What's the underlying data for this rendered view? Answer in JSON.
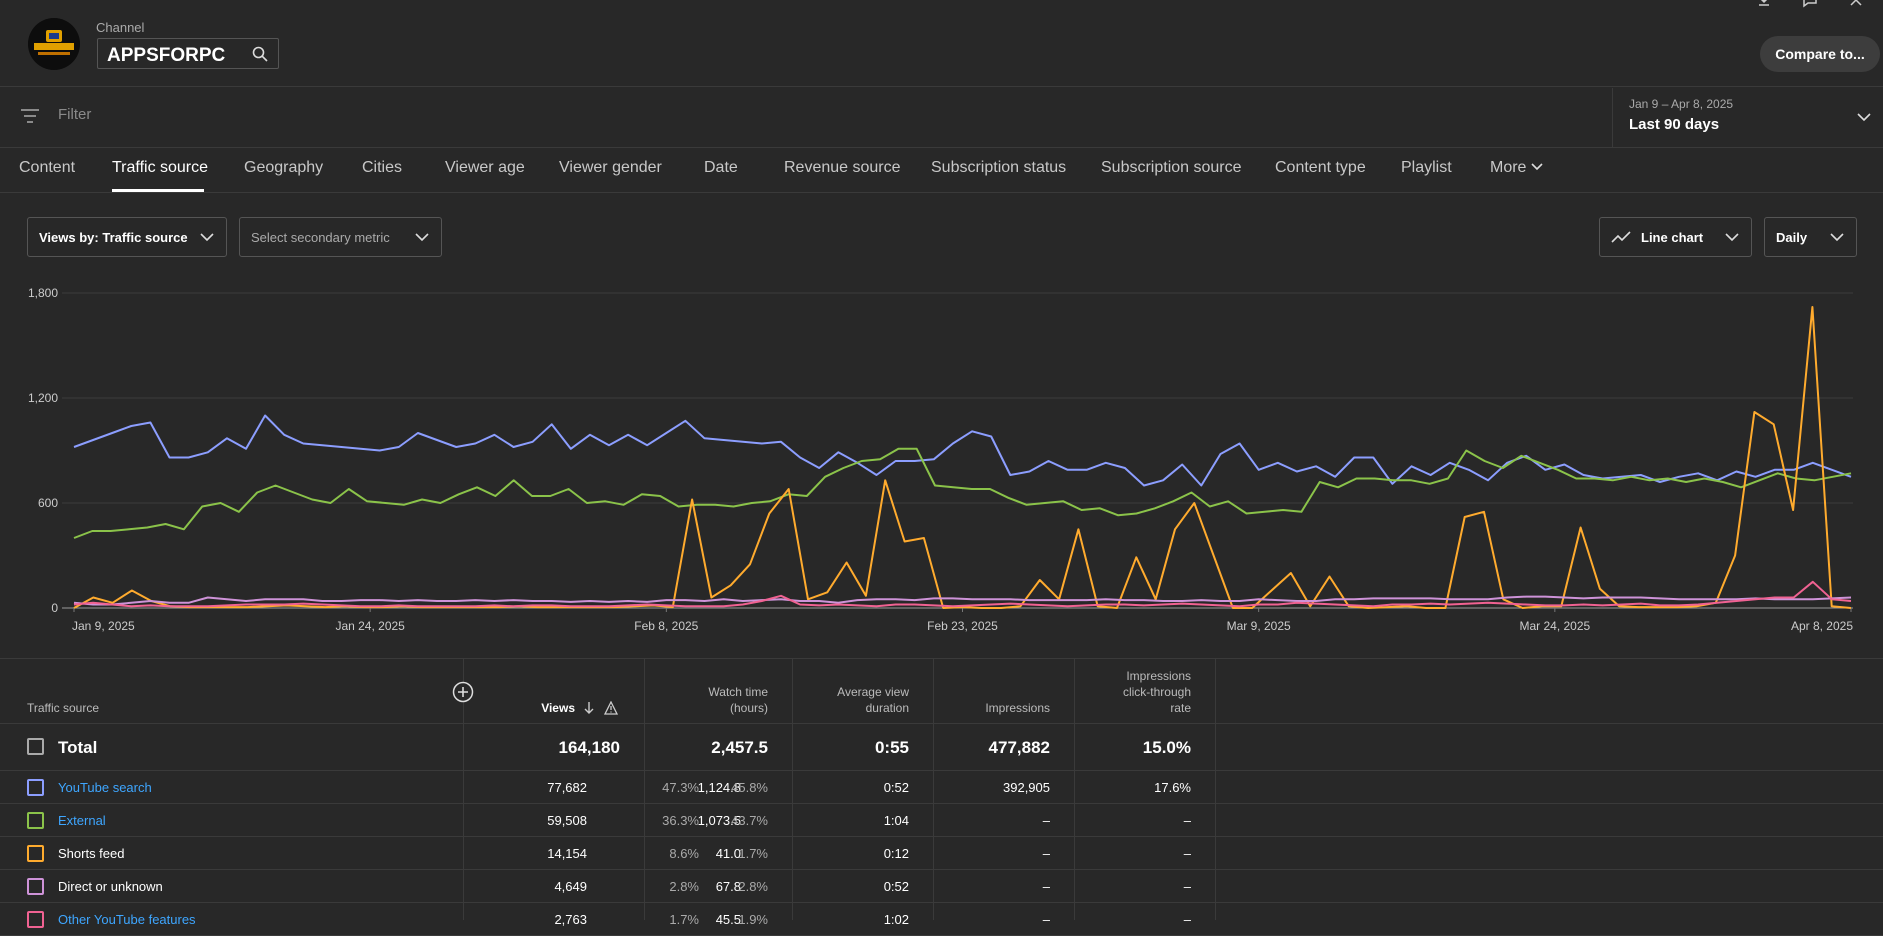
{
  "header": {
    "channel_label": "Channel",
    "channel_name": "APPSFORPC",
    "compare_label": "Compare to..."
  },
  "filter": {
    "placeholder": "Filter"
  },
  "date_range": {
    "range": "Jan 9 – Apr 8, 2025",
    "label": "Last 90 days"
  },
  "tabs": [
    "Content",
    "Traffic source",
    "Geography",
    "Cities",
    "Viewer age",
    "Viewer gender",
    "Date",
    "Revenue source",
    "Subscription status",
    "Subscription source",
    "Content type",
    "Playlist",
    "More"
  ],
  "active_tab": "Traffic source",
  "controls": {
    "primary_metric": "Views by: Traffic source",
    "secondary_metric": "Select secondary metric",
    "chart_type": "Line chart",
    "granularity": "Daily"
  },
  "chart_data": {
    "type": "line",
    "ylim": [
      0,
      1800
    ],
    "yticks": [
      "0",
      "600",
      "1,200",
      "1,800"
    ],
    "xtick_labels": [
      "Jan 9, 2025",
      "Jan 24, 2025",
      "Feb 8, 2025",
      "Feb 23, 2025",
      "Mar 9, 2025",
      "Mar 24, 2025",
      "Apr 8, 2025"
    ],
    "x_start": "2025-01-09",
    "x_end": "2025-04-08",
    "series": [
      {
        "color": "#8c9eff",
        "values": [
          920,
          960,
          1000,
          1040,
          1060,
          860,
          860,
          890,
          970,
          910,
          1100,
          990,
          940,
          930,
          920,
          910,
          900,
          920,
          1000,
          960,
          920,
          940,
          990,
          920,
          950,
          1050,
          910,
          990,
          930,
          990,
          930,
          1000,
          1070,
          970,
          960,
          950,
          940,
          950,
          860,
          800,
          890,
          830,
          760,
          840,
          840,
          850,
          940,
          1010,
          980,
          760,
          780,
          840,
          790,
          790,
          830,
          800,
          700,
          730,
          820,
          700,
          880,
          940,
          790,
          830,
          780,
          810,
          750,
          860,
          860,
          710,
          810,
          760,
          830,
          790,
          730,
          830,
          870,
          790,
          820,
          760,
          740,
          750,
          760,
          720,
          750,
          770,
          730,
          780,
          750,
          790,
          790,
          830,
          790,
          750
        ]
      },
      {
        "color": "#8bc34a",
        "values": [
          400,
          440,
          440,
          450,
          460,
          480,
          450,
          580,
          600,
          550,
          660,
          700,
          660,
          620,
          600,
          680,
          610,
          600,
          590,
          620,
          600,
          650,
          690,
          640,
          730,
          640,
          640,
          680,
          600,
          610,
          590,
          650,
          640,
          580,
          590,
          590,
          580,
          600,
          610,
          650,
          640,
          750,
          800,
          840,
          850,
          910,
          910,
          700,
          690,
          680,
          680,
          630,
          590,
          600,
          610,
          560,
          570,
          530,
          540,
          570,
          610,
          660,
          580,
          610,
          540,
          550,
          560,
          550,
          720,
          690,
          740,
          740,
          730,
          730,
          710,
          740,
          900,
          840,
          800,
          870,
          830,
          790,
          740,
          740,
          730,
          750,
          730,
          740,
          720,
          740,
          720,
          690,
          730,
          770,
          740,
          730,
          750,
          770
        ]
      },
      {
        "color": "#ffab2e",
        "values": [
          0,
          60,
          30,
          100,
          40,
          10,
          5,
          5,
          5,
          5,
          10,
          15,
          10,
          5,
          10,
          5,
          5,
          10,
          5,
          5,
          5,
          5,
          5,
          10,
          5,
          5,
          5,
          5,
          5,
          10,
          15,
          5,
          620,
          60,
          130,
          250,
          540,
          680,
          50,
          90,
          260,
          70,
          730,
          380,
          400,
          0,
          5,
          0,
          0,
          10,
          160,
          50,
          450,
          10,
          0,
          290,
          50,
          450,
          600,
          300,
          0,
          0,
          100,
          200,
          10,
          180,
          10,
          0,
          5,
          10,
          0,
          0,
          520,
          550,
          50,
          0,
          10,
          10,
          460,
          110,
          10,
          5,
          5,
          5,
          10,
          30,
          300,
          1120,
          1050,
          560,
          1720,
          10,
          0
        ]
      },
      {
        "color": "#ce93d8",
        "values": [
          30,
          20,
          20,
          30,
          40,
          30,
          30,
          60,
          50,
          40,
          50,
          50,
          50,
          40,
          40,
          45,
          45,
          40,
          45,
          40,
          40,
          45,
          40,
          45,
          40,
          40,
          35,
          40,
          35,
          40,
          35,
          45,
          45,
          40,
          50,
          40,
          45,
          50,
          40,
          40,
          30,
          45,
          50,
          50,
          45,
          55,
          55,
          50,
          50,
          50,
          45,
          45,
          45,
          45,
          50,
          45,
          45,
          40,
          40,
          45,
          40,
          40,
          50,
          45,
          40,
          40,
          50,
          50,
          55,
          55,
          55,
          55,
          50,
          50,
          50,
          60,
          65,
          65,
          60,
          55,
          60,
          60,
          60,
          55,
          50,
          50,
          50,
          50,
          55,
          50,
          50,
          50,
          55,
          60
        ]
      },
      {
        "color": "#f06292",
        "values": [
          20,
          30,
          20,
          10,
          15,
          10,
          10,
          10,
          15,
          20,
          20,
          20,
          25,
          20,
          15,
          10,
          10,
          15,
          10,
          10,
          10,
          10,
          15,
          10,
          15,
          15,
          10,
          10,
          10,
          15,
          20,
          15,
          10,
          10,
          10,
          20,
          40,
          70,
          20,
          15,
          20,
          15,
          10,
          20,
          20,
          15,
          10,
          15,
          20,
          25,
          20,
          15,
          10,
          15,
          20,
          20,
          15,
          20,
          25,
          20,
          15,
          10,
          20,
          20,
          30,
          25,
          20,
          15,
          10,
          20,
          20,
          25,
          20,
          25,
          30,
          25,
          20,
          15,
          15,
          20,
          15,
          20,
          25,
          15,
          15,
          20,
          30,
          40,
          50,
          60,
          60,
          150,
          50,
          40
        ]
      }
    ]
  },
  "table": {
    "headers": {
      "source": "Traffic source",
      "views": "Views",
      "watch_time_1": "Watch time",
      "watch_time_2": "(hours)",
      "avd_1": "Average view",
      "avd_2": "duration",
      "impressions": "Impressions",
      "ctr_1": "Impressions",
      "ctr_2": "click-through",
      "ctr_3": "rate"
    },
    "total": {
      "name": "Total",
      "views": "164,180",
      "watch": "2,457.5",
      "avd": "0:55",
      "impressions": "477,882",
      "ctr": "15.0%"
    },
    "rows": [
      {
        "name": "YouTube search",
        "link": true,
        "color": "#8c9eff",
        "views": "77,682",
        "views_pct": "47.3%",
        "watch": "1,124.8",
        "watch_pct": "45.8%",
        "avd": "0:52",
        "impressions": "392,905",
        "ctr": "17.6%"
      },
      {
        "name": "External",
        "link": true,
        "color": "#8bc34a",
        "views": "59,508",
        "views_pct": "36.3%",
        "watch": "1,073.5",
        "watch_pct": "43.7%",
        "avd": "1:04",
        "impressions": "–",
        "ctr": "–"
      },
      {
        "name": "Shorts feed",
        "link": false,
        "color": "#ffab2e",
        "views": "14,154",
        "views_pct": "8.6%",
        "watch": "41.0",
        "watch_pct": "1.7%",
        "avd": "0:12",
        "impressions": "–",
        "ctr": "–"
      },
      {
        "name": "Direct or unknown",
        "link": false,
        "color": "#ce93d8",
        "views": "4,649",
        "views_pct": "2.8%",
        "watch": "67.8",
        "watch_pct": "2.8%",
        "avd": "0:52",
        "impressions": "–",
        "ctr": "–"
      },
      {
        "name": "Other YouTube features",
        "link": true,
        "color": "#f06292",
        "views": "2,763",
        "views_pct": "1.7%",
        "watch": "45.5",
        "watch_pct": "1.9%",
        "avd": "1:02",
        "impressions": "–",
        "ctr": "–"
      }
    ]
  }
}
